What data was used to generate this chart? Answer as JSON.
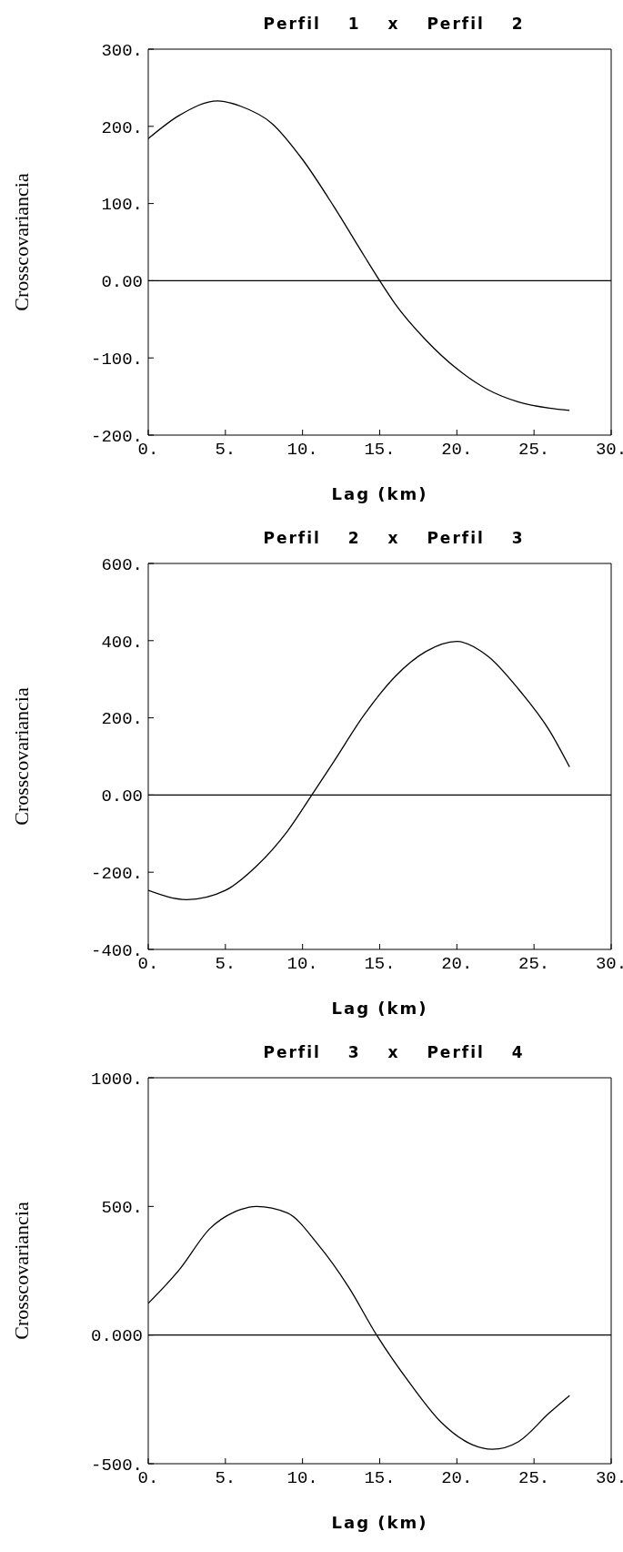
{
  "chart_data": [
    {
      "type": "line",
      "title": "Perfil 1 x Perfil 2",
      "xlabel": "Lag (km)",
      "ylabel": "Crosscovariancia",
      "x": [
        0,
        2,
        4.5,
        6,
        8,
        10,
        12,
        14,
        15,
        16,
        18,
        20,
        22,
        24,
        26,
        27.3
      ],
      "series": [
        {
          "color": "#000000",
          "values": [
            184,
            214,
            233,
            226,
            204,
            157,
            97,
            32,
            0,
            -30,
            -77,
            -114,
            -141,
            -157,
            -165,
            -168
          ]
        }
      ],
      "xlim": [
        0,
        30
      ],
      "xticks": [
        {
          "value": 0,
          "label": "0."
        },
        {
          "value": 5,
          "label": "5."
        },
        {
          "value": 10,
          "label": "10."
        },
        {
          "value": 15,
          "label": "15."
        },
        {
          "value": 20,
          "label": "20."
        },
        {
          "value": 25,
          "label": "25."
        },
        {
          "value": 30,
          "label": "30."
        }
      ],
      "ylim": [
        -200,
        300
      ],
      "yticks": [
        {
          "value": -200,
          "label": "-200."
        },
        {
          "value": -100,
          "label": "-100."
        },
        {
          "value": 0,
          "label": "0.00"
        },
        {
          "value": 100,
          "label": "100."
        },
        {
          "value": 200,
          "label": "200."
        },
        {
          "value": 300,
          "label": "300."
        }
      ],
      "ref_lines": [
        {
          "axis": "y",
          "value": 0,
          "color": "#000000"
        }
      ]
    },
    {
      "type": "line",
      "title": "Perfil 2 x Perfil 3",
      "xlabel": "Lag (km)",
      "ylabel": "Crosscovariancia",
      "x": [
        0,
        2.5,
        5,
        7,
        9,
        10.6,
        12,
        14,
        16,
        18,
        20,
        22,
        24,
        26,
        27.3
      ],
      "series": [
        {
          "color": "#000000",
          "values": [
            -247,
            -271,
            -247,
            -185,
            -95,
            0,
            85,
            208,
            307,
            372,
            398,
            360,
            274,
            167,
            73
          ]
        }
      ],
      "xlim": [
        0,
        30
      ],
      "xticks": [
        {
          "value": 0,
          "label": "0."
        },
        {
          "value": 5,
          "label": "5."
        },
        {
          "value": 10,
          "label": "10."
        },
        {
          "value": 15,
          "label": "15."
        },
        {
          "value": 20,
          "label": "20."
        },
        {
          "value": 25,
          "label": "25."
        },
        {
          "value": 30,
          "label": "30."
        }
      ],
      "ylim": [
        -400,
        600
      ],
      "yticks": [
        {
          "value": -400,
          "label": "-400."
        },
        {
          "value": -200,
          "label": "-200."
        },
        {
          "value": 0,
          "label": "0.00"
        },
        {
          "value": 200,
          "label": "200."
        },
        {
          "value": 400,
          "label": "400."
        },
        {
          "value": 600,
          "label": "600."
        }
      ],
      "ref_lines": [
        {
          "axis": "y",
          "value": 0,
          "color": "#000000"
        }
      ]
    },
    {
      "type": "line",
      "title": "Perfil 3 x Perfil 4",
      "xlabel": "Lag (km)",
      "ylabel": "Crosscovariancia",
      "x": [
        0,
        2,
        4,
        6,
        7,
        9,
        11,
        13,
        14.8,
        17,
        19,
        21,
        22.3,
        24,
        26,
        27.3
      ],
      "series": [
        {
          "color": "#000000",
          "values": [
            123,
            253,
            414,
            488,
            500,
            475,
            352,
            185,
            0,
            -191,
            -340,
            -426,
            -444,
            -414,
            -302,
            -235
          ]
        }
      ],
      "xlim": [
        0,
        30
      ],
      "xticks": [
        {
          "value": 0,
          "label": "0."
        },
        {
          "value": 5,
          "label": "5."
        },
        {
          "value": 10,
          "label": "10."
        },
        {
          "value": 15,
          "label": "15."
        },
        {
          "value": 20,
          "label": "20."
        },
        {
          "value": 25,
          "label": "25."
        },
        {
          "value": 30,
          "label": "30."
        }
      ],
      "ylim": [
        -500,
        1000
      ],
      "yticks": [
        {
          "value": -500,
          "label": "-500."
        },
        {
          "value": 0,
          "label": "0.000"
        },
        {
          "value": 500,
          "label": "500."
        },
        {
          "value": 1000,
          "label": "1000."
        }
      ],
      "ref_lines": [
        {
          "axis": "y",
          "value": 0,
          "color": "#000000"
        }
      ]
    }
  ]
}
